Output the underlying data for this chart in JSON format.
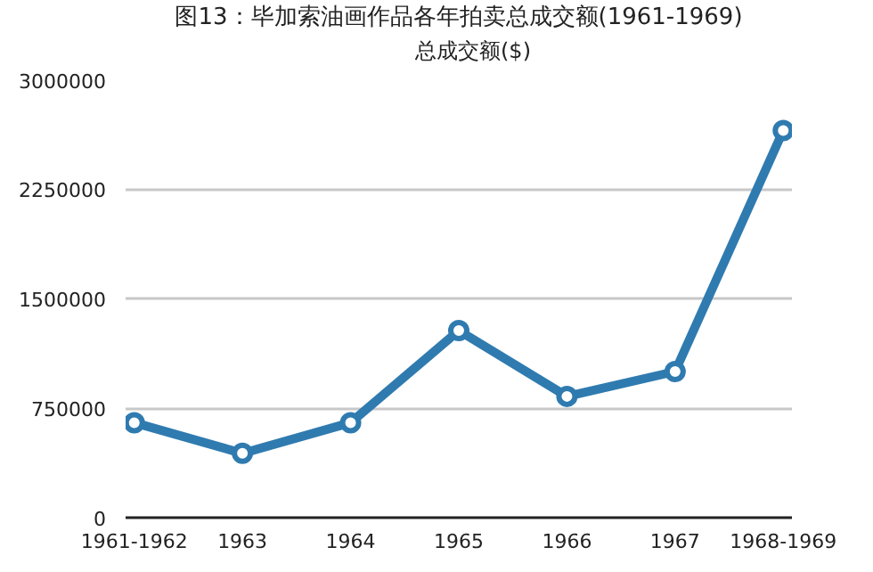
{
  "chart_data": {
    "type": "line",
    "title": "图13：毕加索油画作品各年拍卖总成交额(1961-1969)",
    "categories": [
      "1961-1962",
      "1963",
      "1964",
      "1965",
      "1966",
      "1967",
      "1968-1969"
    ],
    "series": [
      {
        "name": "总成交额($)",
        "color": "#2f7bb0",
        "values": [
          650000,
          440000,
          650000,
          1280000,
          830000,
          1000000,
          2650000
        ]
      }
    ],
    "ylim": [
      0,
      3000000
    ],
    "yticks": [
      0,
      750000,
      1500000,
      2250000,
      3000000
    ],
    "grid": "y",
    "legend": "top",
    "marker": "circle",
    "line_style": "solid"
  }
}
